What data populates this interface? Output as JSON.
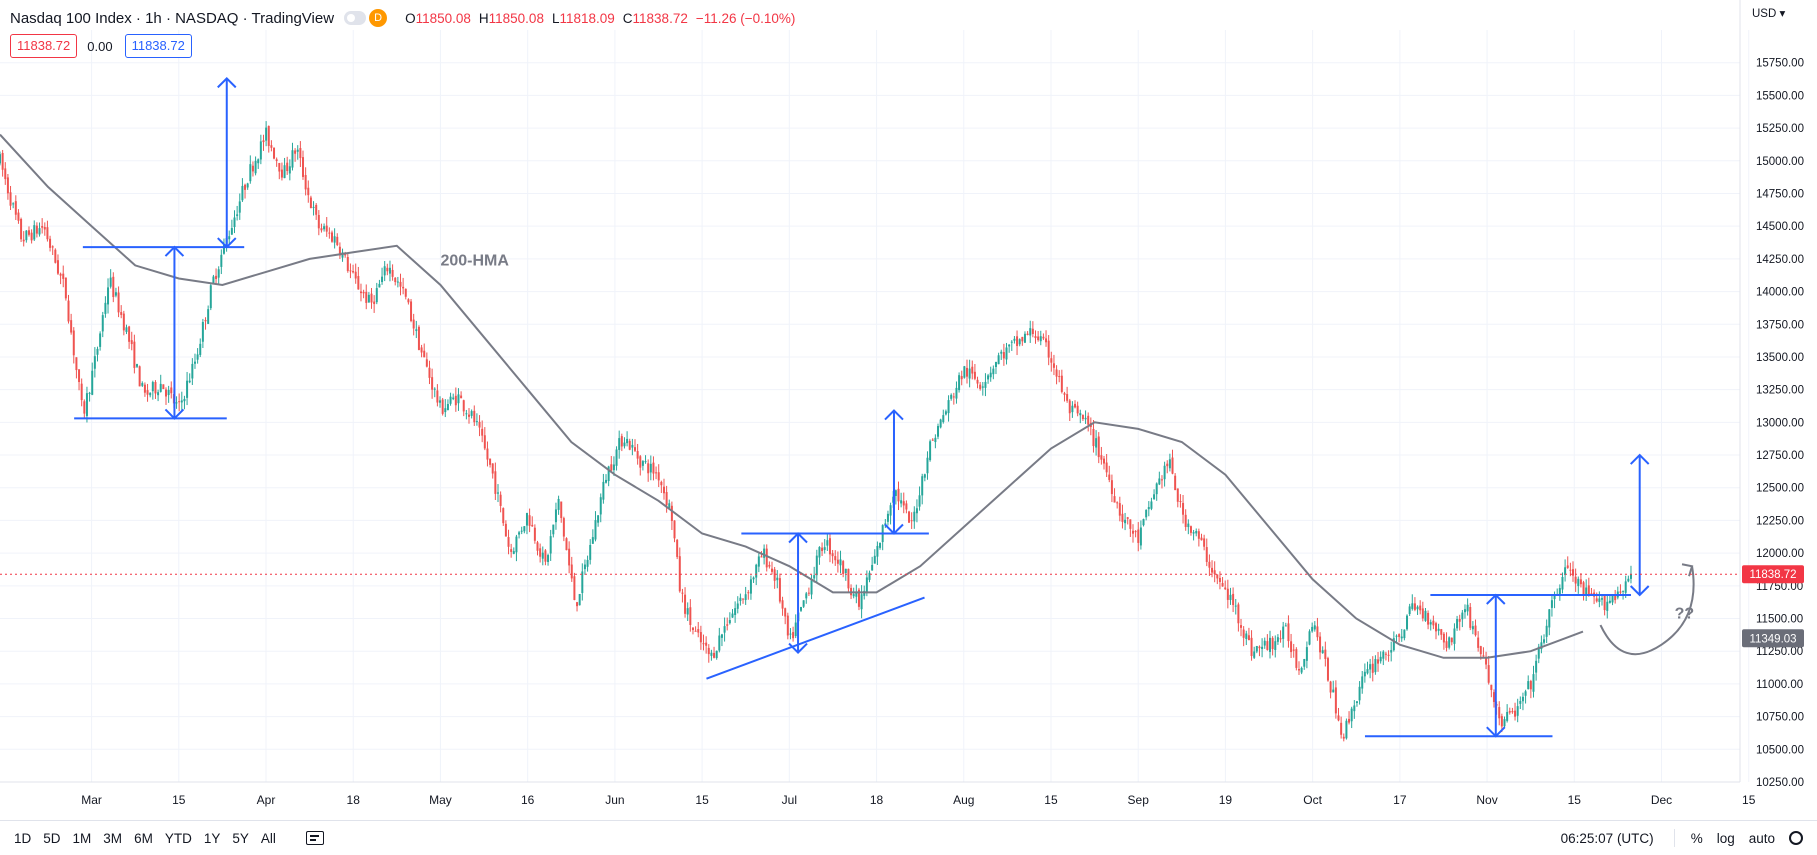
{
  "header": {
    "title": "Nasdaq 100 Index · 1h · NASDAQ · TradingView",
    "interval_badge": "D",
    "ohlc": [
      {
        "k": "O",
        "v": "11850.08"
      },
      {
        "k": "H",
        "v": "11850.08"
      },
      {
        "k": "L",
        "v": "11818.09"
      },
      {
        "k": "C",
        "v": "11838.72"
      }
    ],
    "change": "−11.26 (−0.10%)",
    "bid": "11838.72",
    "spread": "0.00",
    "ask": "11838.72"
  },
  "currency": "USD",
  "bottom": {
    "ranges": [
      "1D",
      "5D",
      "1M",
      "3M",
      "6M",
      "YTD",
      "1Y",
      "5Y",
      "All"
    ],
    "time": "06:25:07 (UTC)",
    "percent": "%",
    "log": "log",
    "auto": "auto"
  },
  "colors": {
    "up": "#26a69a",
    "down": "#ef5350",
    "drawing": "#2962ff",
    "hma": "#787b86",
    "last_price": "#f23645",
    "hma_label": "#787b86"
  },
  "chart_data": {
    "type": "candlestick",
    "symbol": "Nasdaq 100 Index",
    "interval": "1h",
    "ylim": [
      10250,
      16000
    ],
    "y_ticks": [
      "10250.00",
      "10500.00",
      "10750.00",
      "11000.00",
      "11250.00",
      "11500.00",
      "11750.00",
      "12000.00",
      "12250.00",
      "12500.00",
      "12750.00",
      "13000.00",
      "13250.00",
      "13500.00",
      "13750.00",
      "14000.00",
      "14250.00",
      "14500.00",
      "14750.00",
      "15000.00",
      "15250.00",
      "15500.00",
      "15750.00"
    ],
    "x_ticks": [
      {
        "label": "Mar",
        "t": 0.8
      },
      {
        "label": "15",
        "t": 2.8
      },
      {
        "label": "Apr",
        "t": 4.8
      },
      {
        "label": "18",
        "t": 6.8
      },
      {
        "label": "May",
        "t": 8.8
      },
      {
        "label": "16",
        "t": 10.8
      },
      {
        "label": "Jun",
        "t": 12.8
      },
      {
        "label": "15",
        "t": 14.8
      },
      {
        "label": "Jul",
        "t": 16.8
      },
      {
        "label": "18",
        "t": 18.8
      },
      {
        "label": "Aug",
        "t": 20.8
      },
      {
        "label": "15",
        "t": 22.8
      },
      {
        "label": "Sep",
        "t": 24.8
      },
      {
        "label": "19",
        "t": 26.8
      },
      {
        "label": "Oct",
        "t": 28.8
      },
      {
        "label": "17",
        "t": 30.8
      },
      {
        "label": "Nov",
        "t": 32.8
      },
      {
        "label": "15",
        "t": 34.8
      },
      {
        "label": "Dec",
        "t": 36.8
      },
      {
        "label": "15",
        "t": 38.8
      }
    ],
    "xlim": [
      -1.3,
      38.6
    ],
    "path": [
      [
        -1.3,
        15000
      ],
      [
        -0.8,
        14400
      ],
      [
        -0.3,
        14500
      ],
      [
        0.2,
        14000
      ],
      [
        0.6,
        13050
      ],
      [
        0.9,
        13500
      ],
      [
        1.2,
        14100
      ],
      [
        1.6,
        13700
      ],
      [
        2.0,
        13200
      ],
      [
        2.4,
        13300
      ],
      [
        2.8,
        13100
      ],
      [
        3.2,
        13500
      ],
      [
        3.6,
        14100
      ],
      [
        4.0,
        14500
      ],
      [
        4.4,
        14900
      ],
      [
        4.8,
        15200
      ],
      [
        5.2,
        14900
      ],
      [
        5.5,
        15100
      ],
      [
        5.8,
        14700
      ],
      [
        6.0,
        14500
      ],
      [
        6.4,
        14400
      ],
      [
        6.8,
        14100
      ],
      [
        7.2,
        13900
      ],
      [
        7.6,
        14200
      ],
      [
        8.0,
        13950
      ],
      [
        8.4,
        13500
      ],
      [
        8.8,
        13100
      ],
      [
        9.2,
        13200
      ],
      [
        9.6,
        13000
      ],
      [
        10.0,
        12600
      ],
      [
        10.4,
        12000
      ],
      [
        10.8,
        12300
      ],
      [
        11.2,
        11900
      ],
      [
        11.5,
        12400
      ],
      [
        11.9,
        11600
      ],
      [
        12.2,
        12000
      ],
      [
        12.6,
        12600
      ],
      [
        13.0,
        12900
      ],
      [
        13.4,
        12700
      ],
      [
        13.8,
        12600
      ],
      [
        14.1,
        12300
      ],
      [
        14.3,
        11700
      ],
      [
        14.6,
        11400
      ],
      [
        15.0,
        11200
      ],
      [
        15.4,
        11500
      ],
      [
        15.8,
        11700
      ],
      [
        16.2,
        12000
      ],
      [
        16.5,
        11800
      ],
      [
        16.8,
        11300
      ],
      [
        17.2,
        11700
      ],
      [
        17.6,
        12100
      ],
      [
        18.0,
        11900
      ],
      [
        18.4,
        11600
      ],
      [
        18.8,
        12000
      ],
      [
        19.2,
        12500
      ],
      [
        19.6,
        12200
      ],
      [
        20.0,
        12800
      ],
      [
        20.4,
        13100
      ],
      [
        20.8,
        13400
      ],
      [
        21.2,
        13300
      ],
      [
        21.6,
        13500
      ],
      [
        22.0,
        13600
      ],
      [
        22.4,
        13700
      ],
      [
        22.8,
        13500
      ],
      [
        23.2,
        13100
      ],
      [
        23.6,
        13000
      ],
      [
        24.0,
        12700
      ],
      [
        24.4,
        12300
      ],
      [
        24.8,
        12100
      ],
      [
        25.2,
        12500
      ],
      [
        25.5,
        12700
      ],
      [
        25.8,
        12300
      ],
      [
        26.2,
        12100
      ],
      [
        26.6,
        11800
      ],
      [
        27.0,
        11600
      ],
      [
        27.4,
        11250
      ],
      [
        27.8,
        11300
      ],
      [
        28.2,
        11400
      ],
      [
        28.5,
        11100
      ],
      [
        28.8,
        11500
      ],
      [
        29.2,
        11000
      ],
      [
        29.5,
        10600
      ],
      [
        29.9,
        11000
      ],
      [
        30.3,
        11200
      ],
      [
        30.7,
        11300
      ],
      [
        31.1,
        11600
      ],
      [
        31.5,
        11500
      ],
      [
        31.9,
        11300
      ],
      [
        32.3,
        11600
      ],
      [
        32.7,
        11200
      ],
      [
        33.1,
        10700
      ],
      [
        33.5,
        10800
      ],
      [
        33.8,
        11000
      ],
      [
        34.2,
        11500
      ],
      [
        34.6,
        11900
      ],
      [
        35.0,
        11700
      ],
      [
        35.4,
        11600
      ],
      [
        35.8,
        11700
      ],
      [
        36.1,
        11838.72
      ]
    ],
    "hma_200": [
      [
        -1.3,
        15200
      ],
      [
        -0.2,
        14800
      ],
      [
        0.8,
        14500
      ],
      [
        1.8,
        14200
      ],
      [
        2.8,
        14100
      ],
      [
        3.8,
        14050
      ],
      [
        4.8,
        14150
      ],
      [
        5.8,
        14250
      ],
      [
        6.8,
        14300
      ],
      [
        7.8,
        14350
      ],
      [
        8.8,
        14050
      ],
      [
        9.8,
        13650
      ],
      [
        10.8,
        13250
      ],
      [
        11.8,
        12850
      ],
      [
        12.8,
        12600
      ],
      [
        13.8,
        12400
      ],
      [
        14.8,
        12150
      ],
      [
        15.8,
        12050
      ],
      [
        16.8,
        11900
      ],
      [
        17.8,
        11700
      ],
      [
        18.8,
        11700
      ],
      [
        19.8,
        11900
      ],
      [
        20.8,
        12200
      ],
      [
        21.8,
        12500
      ],
      [
        22.8,
        12800
      ],
      [
        23.8,
        13000
      ],
      [
        24.8,
        12950
      ],
      [
        25.8,
        12850
      ],
      [
        26.8,
        12600
      ],
      [
        27.8,
        12200
      ],
      [
        28.8,
        11800
      ],
      [
        29.8,
        11500
      ],
      [
        30.8,
        11300
      ],
      [
        31.8,
        11200
      ],
      [
        32.8,
        11200
      ],
      [
        33.8,
        11250
      ],
      [
        35.0,
        11400
      ]
    ],
    "series": [
      {
        "name": "200-HMA",
        "type": "line"
      }
    ],
    "last_price": 11838.72,
    "hma_last": 11349.03,
    "last_price_label": "11838.72",
    "hma_last_label": "11349.03",
    "annotations": [
      {
        "text": "200-HMA",
        "t": 8.8,
        "y": 14200
      },
      {
        "text": "??",
        "t": 37.1,
        "y": 11500
      }
    ],
    "drawings": [
      {
        "kind": "hline",
        "t1": 0.4,
        "t2": 3.9,
        "y": 13030
      },
      {
        "kind": "hline",
        "t1": 0.6,
        "t2": 4.3,
        "y": 14340
      },
      {
        "kind": "double_arrow",
        "t": 2.7,
        "y1": 13030,
        "y2": 14340
      },
      {
        "kind": "arrow_up",
        "t": 3.9,
        "y1": 14340,
        "y2": 15630
      },
      {
        "kind": "line",
        "t1": 14.9,
        "y1": 11040,
        "t2": 19.9,
        "y2": 11660
      },
      {
        "kind": "hline",
        "t1": 15.7,
        "t2": 20.0,
        "y": 12150
      },
      {
        "kind": "double_arrow",
        "t": 17.0,
        "y1": 11240,
        "y2": 12150
      },
      {
        "kind": "arrow_up",
        "t": 19.2,
        "y1": 12150,
        "y2": 13090
      },
      {
        "kind": "hline",
        "t1": 30.0,
        "t2": 34.3,
        "y": 10600
      },
      {
        "kind": "hline",
        "t1": 31.5,
        "t2": 36.1,
        "y": 11680
      },
      {
        "kind": "double_arrow",
        "t": 33.0,
        "y1": 10600,
        "y2": 11680
      },
      {
        "kind": "arrow_up",
        "t": 36.3,
        "y1": 11680,
        "y2": 12750
      }
    ],
    "grid": true
  }
}
